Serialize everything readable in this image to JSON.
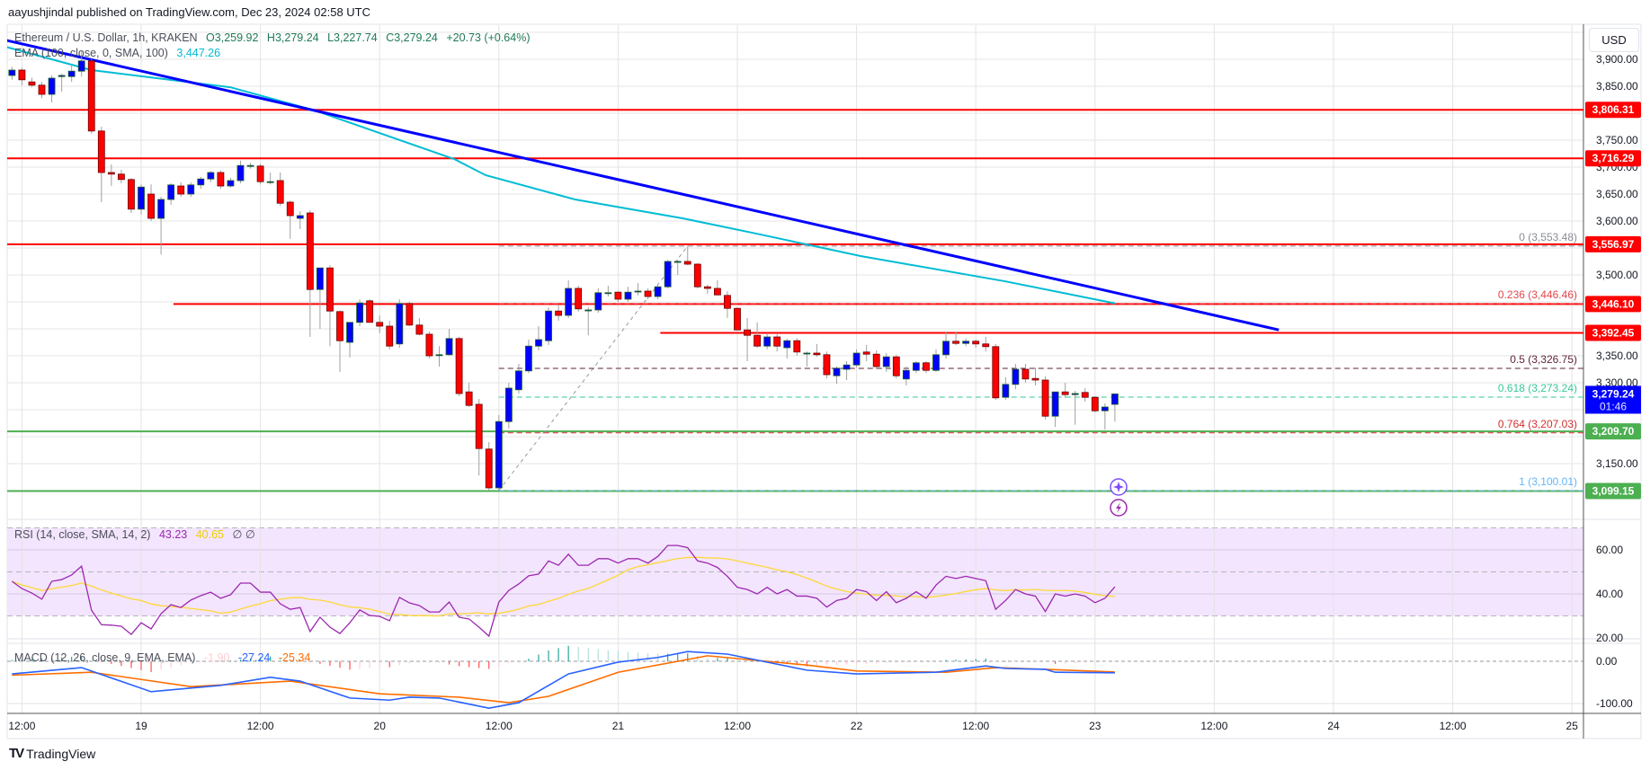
{
  "header": {
    "published": "aayushjindal published on TradingView.com, Dec 23, 2024 02:58 UTC"
  },
  "legend": {
    "symbol": "Ethereum / U.S. Dollar, 1h, KRAKEN",
    "open": "O3,259.92",
    "high": "H3,279.24",
    "low": "L3,227.74",
    "close": "C3,279.24",
    "change": "+20.73 (+0.64%)",
    "ema_label": "EMA (100, close, 0, SMA, 100)",
    "ema_value": "3,447.26",
    "rsi_label": "RSI (14, close, SMA, 14, 2)",
    "rsi_value": "43.23",
    "rsi_sma_value": "40.65",
    "rsi_extra": "∅  ∅",
    "macd_label": "MACD (12, 26, close, 9, EMA, EMA)",
    "macd_hist_value": "-1.90",
    "macd_value": "-27.24",
    "macd_signal_value": "-25.34"
  },
  "price_axis": {
    "currency": "USD",
    "ticks": [
      {
        "p": 3900,
        "label": "3,900.00"
      },
      {
        "p": 3850,
        "label": "3,850.00"
      },
      {
        "p": 3750,
        "label": "3,750.00"
      },
      {
        "p": 3700,
        "label": "3,700.00"
      },
      {
        "p": 3650,
        "label": "3,650.00"
      },
      {
        "p": 3600,
        "label": "3,600.00"
      },
      {
        "p": 3500,
        "label": "3,500.00"
      },
      {
        "p": 3350,
        "label": "3,350.00"
      },
      {
        "p": 3300,
        "label": "3,300.00"
      },
      {
        "p": 3150,
        "label": "3,150.00"
      }
    ],
    "current_price": "3,279.24",
    "countdown": "01:46"
  },
  "rsi_axis": [
    {
      "v": 60,
      "label": "60.00"
    },
    {
      "v": 40,
      "label": "40.00"
    },
    {
      "v": 20,
      "label": "20.00"
    }
  ],
  "macd_axis": [
    {
      "v": 0,
      "label": "0.00"
    },
    {
      "v": -100,
      "label": "-100.00"
    }
  ],
  "time_axis": [
    {
      "t": "2024-12-18 12:00",
      "label": "12:00"
    },
    {
      "t": "2024-12-19 00:00",
      "label": "19"
    },
    {
      "t": "2024-12-19 12:00",
      "label": "12:00"
    },
    {
      "t": "2024-12-20 00:00",
      "label": "20"
    },
    {
      "t": "2024-12-20 12:00",
      "label": "12:00"
    },
    {
      "t": "2024-12-21 00:00",
      "label": "21"
    },
    {
      "t": "2024-12-21 12:00",
      "label": "12:00"
    },
    {
      "t": "2024-12-22 00:00",
      "label": "22"
    },
    {
      "t": "2024-12-22 12:00",
      "label": "12:00"
    },
    {
      "t": "2024-12-23 00:00",
      "label": "23"
    },
    {
      "t": "2024-12-23 12:00",
      "label": "12:00"
    },
    {
      "t": "2024-12-24 00:00",
      "label": "24"
    },
    {
      "t": "2024-12-24 12:00",
      "label": "12:00"
    },
    {
      "t": "2024-12-25 00:00",
      "label": "25"
    }
  ],
  "colors": {
    "up": "#0000ff",
    "down": "#ff0000",
    "ema": "#00bcd4",
    "trendline": "#0000ff",
    "resistance": "#ff0000",
    "support": "#4caf50",
    "rsi": "#9c27b0",
    "rsi_sma": "#fdd835",
    "macd": "#2962ff",
    "signal": "#ff6d00",
    "rsi_band": "#f3e5fd"
  },
  "icons": [
    "sparkle-icon",
    "lightning-icon"
  ],
  "footer": {
    "logo": "TradingView"
  },
  "chart_data": {
    "type": "candlestick",
    "interval": "1h",
    "first_candle_time": "2024-12-18 11:00",
    "candle_fields": [
      "open",
      "high",
      "low",
      "close"
    ],
    "candles": [
      [
        3870,
        3886,
        3862,
        3880
      ],
      [
        3880,
        3884,
        3852,
        3862
      ],
      [
        3858,
        3866,
        3848,
        3852
      ],
      [
        3852,
        3858,
        3828,
        3835
      ],
      [
        3835,
        3870,
        3820,
        3865
      ],
      [
        3868,
        3873,
        3840,
        3870
      ],
      [
        3868,
        3890,
        3858,
        3878
      ],
      [
        3878,
        3915,
        3868,
        3897
      ],
      [
        3897,
        3900,
        3762,
        3767
      ],
      [
        3767,
        3775,
        3635,
        3690
      ],
      [
        3690,
        3705,
        3665,
        3687
      ],
      [
        3687,
        3695,
        3670,
        3677
      ],
      [
        3677,
        3680,
        3615,
        3622
      ],
      [
        3622,
        3668,
        3612,
        3663
      ],
      [
        3650,
        3668,
        3600,
        3605
      ],
      [
        3605,
        3645,
        3538,
        3640
      ],
      [
        3640,
        3670,
        3630,
        3667
      ],
      [
        3665,
        3672,
        3645,
        3650
      ],
      [
        3650,
        3672,
        3645,
        3667
      ],
      [
        3667,
        3682,
        3660,
        3678
      ],
      [
        3678,
        3693,
        3672,
        3690
      ],
      [
        3690,
        3694,
        3660,
        3665
      ],
      [
        3665,
        3680,
        3662,
        3675
      ],
      [
        3675,
        3712,
        3670,
        3703
      ],
      [
        3703,
        3708,
        3697,
        3703
      ],
      [
        3702,
        3706,
        3668,
        3673
      ],
      [
        3673,
        3690,
        3668,
        3673
      ],
      [
        3675,
        3690,
        3628,
        3633
      ],
      [
        3635,
        3638,
        3567,
        3610
      ],
      [
        3605,
        3618,
        3585,
        3610
      ],
      [
        3615,
        3620,
        3385,
        3473
      ],
      [
        3473,
        3513,
        3400,
        3513
      ],
      [
        3513,
        3518,
        3368,
        3433
      ],
      [
        3432,
        3434,
        3320,
        3378
      ],
      [
        3375,
        3412,
        3347,
        3412
      ],
      [
        3412,
        3455,
        3405,
        3448
      ],
      [
        3452,
        3455,
        3412,
        3412
      ],
      [
        3412,
        3425,
        3392,
        3405
      ],
      [
        3405,
        3415,
        3362,
        3368
      ],
      [
        3372,
        3455,
        3365,
        3447
      ],
      [
        3447,
        3450,
        3405,
        3407
      ],
      [
        3407,
        3420,
        3388,
        3390
      ],
      [
        3390,
        3395,
        3345,
        3350
      ],
      [
        3352,
        3368,
        3330,
        3352
      ],
      [
        3352,
        3400,
        3350,
        3382
      ],
      [
        3382,
        3385,
        3275,
        3280
      ],
      [
        3283,
        3300,
        3255,
        3258
      ],
      [
        3260,
        3270,
        3128,
        3178
      ],
      [
        3177,
        3190,
        3100.01,
        3105
      ],
      [
        3105,
        3240,
        3100,
        3228
      ],
      [
        3228,
        3300,
        3215,
        3290
      ],
      [
        3287,
        3335,
        3280,
        3322
      ],
      [
        3322,
        3380,
        3318,
        3368
      ],
      [
        3368,
        3405,
        3360,
        3380
      ],
      [
        3378,
        3440,
        3370,
        3433
      ],
      [
        3433,
        3445,
        3415,
        3425
      ],
      [
        3425,
        3490,
        3420,
        3475
      ],
      [
        3475,
        3480,
        3432,
        3437
      ],
      [
        3435,
        3440,
        3388,
        3435
      ],
      [
        3435,
        3475,
        3430,
        3467
      ],
      [
        3467,
        3480,
        3460,
        3467
      ],
      [
        3468,
        3470,
        3450,
        3455
      ],
      [
        3455,
        3478,
        3450,
        3468
      ],
      [
        3470,
        3485,
        3462,
        3470
      ],
      [
        3470,
        3475,
        3455,
        3460
      ],
      [
        3460,
        3480,
        3455,
        3478
      ],
      [
        3478,
        3528,
        3475,
        3525
      ],
      [
        3525,
        3528,
        3500,
        3525
      ],
      [
        3525,
        3553.48,
        3518,
        3520
      ],
      [
        3520,
        3522,
        3475,
        3478
      ],
      [
        3478,
        3482,
        3465,
        3475
      ],
      [
        3475,
        3490,
        3462,
        3463
      ],
      [
        3462,
        3470,
        3420,
        3438
      ],
      [
        3438,
        3440,
        3398,
        3398
      ],
      [
        3398,
        3420,
        3340,
        3388
      ],
      [
        3388,
        3412,
        3365,
        3368
      ],
      [
        3368,
        3390,
        3362,
        3385
      ],
      [
        3385,
        3390,
        3358,
        3368
      ],
      [
        3365,
        3382,
        3345,
        3378
      ],
      [
        3378,
        3383,
        3350,
        3357
      ],
      [
        3355,
        3358,
        3330,
        3355
      ],
      [
        3355,
        3372,
        3348,
        3352
      ],
      [
        3352,
        3358,
        3308,
        3315
      ],
      [
        3313,
        3330,
        3298,
        3327
      ],
      [
        3325,
        3340,
        3305,
        3333
      ],
      [
        3333,
        3362,
        3328,
        3355
      ],
      [
        3357,
        3370,
        3340,
        3353
      ],
      [
        3353,
        3360,
        3325,
        3330
      ],
      [
        3330,
        3355,
        3320,
        3348
      ],
      [
        3348,
        3352,
        3308,
        3313
      ],
      [
        3307,
        3330,
        3295,
        3323
      ],
      [
        3323,
        3340,
        3318,
        3337
      ],
      [
        3337,
        3340,
        3318,
        3323
      ],
      [
        3323,
        3362,
        3320,
        3352
      ],
      [
        3352,
        3395,
        3345,
        3377
      ],
      [
        3377,
        3395,
        3370,
        3373
      ],
      [
        3373,
        3382,
        3368,
        3377
      ],
      [
        3377,
        3380,
        3365,
        3372
      ],
      [
        3372,
        3385,
        3358,
        3367
      ],
      [
        3367,
        3372,
        3268,
        3272
      ],
      [
        3273,
        3310,
        3268,
        3297
      ],
      [
        3297,
        3335,
        3288,
        3325
      ],
      [
        3325,
        3335,
        3300,
        3307
      ],
      [
        3308,
        3328,
        3295,
        3305
      ],
      [
        3305,
        3312,
        3232,
        3238
      ],
      [
        3238,
        3283,
        3218,
        3283
      ],
      [
        3283,
        3300,
        3272,
        3278
      ],
      [
        3278,
        3285,
        3222,
        3280
      ],
      [
        3282,
        3290,
        3265,
        3273
      ],
      [
        3273,
        3275,
        3245,
        3248
      ],
      [
        3248,
        3262,
        3213,
        3255
      ],
      [
        3259.92,
        3279.24,
        3227.74,
        3279.24
      ]
    ],
    "ema100": [
      [
        "2024-12-18 10:00",
        3925
      ],
      [
        "2024-12-18 19:00",
        3880
      ],
      [
        "2024-12-19 09:00",
        3848
      ],
      [
        "2024-12-19 17:30",
        3805
      ],
      [
        "2024-12-20 07:30",
        3715
      ],
      [
        "2024-12-20 10:40",
        3685
      ],
      [
        "2024-12-20 19:40",
        3640
      ],
      [
        "2024-12-21 06:30",
        3605
      ],
      [
        "2024-12-21 13:50",
        3577
      ],
      [
        "2024-12-22 00:25",
        3535
      ],
      [
        "2024-12-22 15:00",
        3488
      ],
      [
        "2024-12-23 02:00",
        3447.26
      ]
    ],
    "trendline": [
      [
        "2024-12-18 09:45",
        3938
      ],
      [
        "2024-12-23 18:30",
        3398
      ]
    ],
    "horizontal_levels": [
      {
        "price": 3806.31,
        "label": "3,806.31",
        "kind": "resistance",
        "from": null
      },
      {
        "price": 3716.29,
        "label": "3,716.29",
        "kind": "resistance",
        "from": null
      },
      {
        "price": 3556.97,
        "label": "3,556.97",
        "kind": "resistance",
        "from": null
      },
      {
        "price": 3446.1,
        "label": "3,446.10",
        "kind": "resistance",
        "from": "2024-12-19 03:15"
      },
      {
        "price": 3392.45,
        "label": "3,392.45",
        "kind": "resistance",
        "from": "2024-12-21 04:15"
      },
      {
        "price": 3209.7,
        "label": "3,209.70",
        "kind": "support",
        "from": null
      },
      {
        "price": 3099.15,
        "label": "3,099.15",
        "kind": "support",
        "from": null
      }
    ],
    "fibonacci": {
      "from": [
        "2024-12-20 12:00",
        3100.01
      ],
      "to": [
        "2024-12-21 07:00",
        3553.48
      ],
      "levels": [
        {
          "ratio": "0",
          "price": 3553.48,
          "label": "0 (3,553.48)",
          "color": "#8a8d96"
        },
        {
          "ratio": "0.236",
          "price": 3446.46,
          "label": "0.236 (3,446.46)",
          "color": "#e0474c"
        },
        {
          "ratio": "0.5",
          "price": 3326.75,
          "label": "0.5 (3,326.75)",
          "color": "#5d1f3a"
        },
        {
          "ratio": "0.618",
          "price": 3273.24,
          "label": "0.618 (3,273.24)",
          "color": "#36c99a"
        },
        {
          "ratio": "0.764",
          "price": 3207.03,
          "label": "0.764 (3,207.03)",
          "color": "#d32f2f"
        },
        {
          "ratio": "1",
          "price": 3100.01,
          "label": "1 (3,100.01)",
          "color": "#64b5f6"
        }
      ]
    },
    "rsi": [
      45.7,
      42.4,
      40.4,
      37.6,
      45.7,
      46.5,
      48.6,
      52.6,
      32.6,
      26,
      25.8,
      25.3,
      21.6,
      26.9,
      24.1,
      31,
      35.1,
      33.8,
      37.2,
      39.2,
      40.8,
      38,
      39.6,
      44.9,
      44.9,
      40.8,
      40.8,
      35.5,
      33,
      33.8,
      22.9,
      29.4,
      24.9,
      22,
      26.9,
      32.7,
      30.2,
      29.8,
      27.8,
      38.4,
      35.9,
      34.7,
      31.8,
      31.8,
      36.3,
      29.4,
      28.6,
      24.9,
      20.8,
      36.3,
      41.6,
      44.5,
      48.2,
      49,
      55,
      53,
      58,
      53,
      53,
      56,
      56,
      54,
      56,
      56,
      54,
      57,
      62,
      62,
      61,
      55,
      54,
      52,
      48,
      43,
      42,
      40,
      43,
      40,
      42,
      39,
      39,
      38,
      34,
      37,
      38,
      42,
      41,
      37,
      41,
      36,
      38,
      41,
      38,
      44,
      48,
      47,
      48,
      47,
      46,
      33,
      37,
      42,
      40,
      39,
      32,
      40,
      39,
      40,
      39,
      36,
      38,
      43.23
    ],
    "rsi_levels": {
      "upper": 70,
      "middle": 50,
      "lower": 30
    },
    "macd_line": [
      [
        "2024-12-18 11:00",
        -30
      ],
      [
        "2024-12-18 18:00",
        -15
      ],
      [
        "2024-12-19 01:00",
        -72
      ],
      [
        "2024-12-19 08:00",
        -57
      ],
      [
        "2024-12-19 13:00",
        -38
      ],
      [
        "2024-12-19 16:00",
        -47
      ],
      [
        "2024-12-19 21:00",
        -87
      ],
      [
        "2024-12-20 01:00",
        -92
      ],
      [
        "2024-12-20 03:00",
        -85
      ],
      [
        "2024-12-20 06:00",
        -87
      ],
      [
        "2024-12-20 11:00",
        -111
      ],
      [
        "2024-12-20 14:00",
        -98
      ],
      [
        "2024-12-20 19:00",
        -30
      ],
      [
        "2024-12-21 00:00",
        -2
      ],
      [
        "2024-12-21 04:00",
        9
      ],
      [
        "2024-12-21 07:00",
        23
      ],
      [
        "2024-12-21 11:00",
        17
      ],
      [
        "2024-12-21 19:00",
        -21
      ],
      [
        "2024-12-22 00:00",
        -30
      ],
      [
        "2024-12-22 08:00",
        -26
      ],
      [
        "2024-12-22 13:00",
        -11
      ],
      [
        "2024-12-22 15:00",
        -17
      ],
      [
        "2024-12-22 19:00",
        -19
      ],
      [
        "2024-12-22 20:00",
        -26
      ],
      [
        "2024-12-23 02:00",
        -27.24
      ]
    ],
    "signal_line": [
      [
        "2024-12-18 11:00",
        -33
      ],
      [
        "2024-12-18 19:00",
        -26
      ],
      [
        "2024-12-19 05:00",
        -60
      ],
      [
        "2024-12-19 15:00",
        -47
      ],
      [
        "2024-12-20 00:00",
        -77
      ],
      [
        "2024-12-20 08:00",
        -85
      ],
      [
        "2024-12-20 13:00",
        -98
      ],
      [
        "2024-12-20 17:00",
        -83
      ],
      [
        "2024-12-21 00:00",
        -26
      ],
      [
        "2024-12-21 09:00",
        13
      ],
      [
        "2024-12-21 19:00",
        -9
      ],
      [
        "2024-12-22 00:00",
        -23
      ],
      [
        "2024-12-22 09:00",
        -26
      ],
      [
        "2024-12-22 14:00",
        -15
      ],
      [
        "2024-12-22 19:00",
        -19
      ],
      [
        "2024-12-23 02:00",
        -25.34
      ]
    ]
  }
}
